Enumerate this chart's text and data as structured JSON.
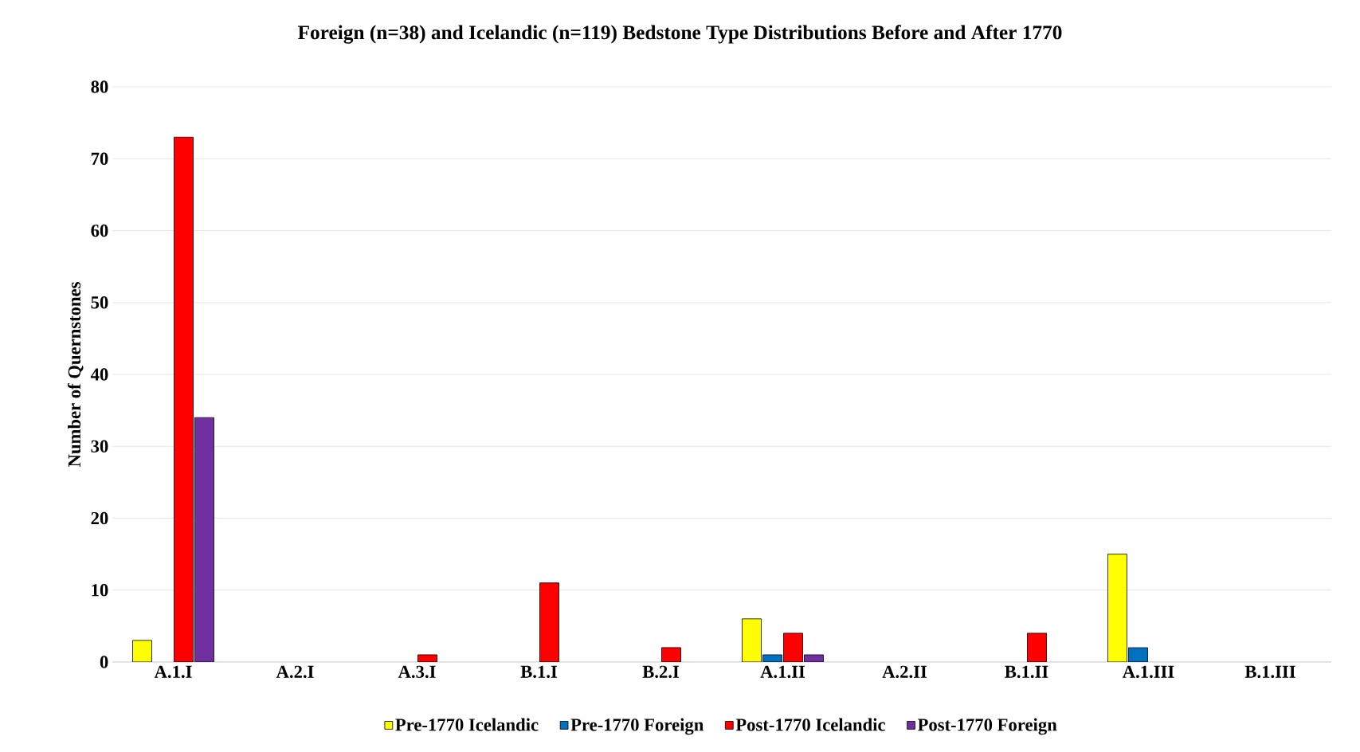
{
  "chart_data": {
    "type": "bar",
    "title": "Foreign (n=38) and Icelandic (n=119) Bedstone Type Distributions Before and After 1770",
    "ylabel": "Number of Quernstones",
    "categories": [
      "A.1.I",
      "A.2.I",
      "A.3.I",
      "B.1.I",
      "B.2.I",
      "A.1.II",
      "A.2.II",
      "B.1.II",
      "A.1.III",
      "B.1.III"
    ],
    "series": [
      {
        "name": "Pre-1770 Icelandic",
        "color": "#ffff00",
        "values": [
          3,
          null,
          null,
          null,
          null,
          6,
          null,
          null,
          15,
          null
        ]
      },
      {
        "name": "Pre-1770 Foreign",
        "color": "#0070c0",
        "values": [
          null,
          null,
          null,
          null,
          null,
          1,
          null,
          null,
          2,
          null
        ]
      },
      {
        "name": "Post-1770 Icelandic",
        "color": "#ff0000",
        "values": [
          73,
          null,
          1,
          11,
          2,
          4,
          null,
          4,
          null,
          null
        ]
      },
      {
        "name": "Post-1770 Foreign",
        "color": "#7030a0",
        "values": [
          34,
          null,
          null,
          null,
          null,
          1,
          null,
          null,
          null,
          null
        ]
      }
    ],
    "ylim": [
      0,
      80
    ],
    "yticks": [
      0,
      10,
      20,
      30,
      40,
      50,
      60,
      70,
      80
    ],
    "grid": "y",
    "legend": "bottom"
  }
}
